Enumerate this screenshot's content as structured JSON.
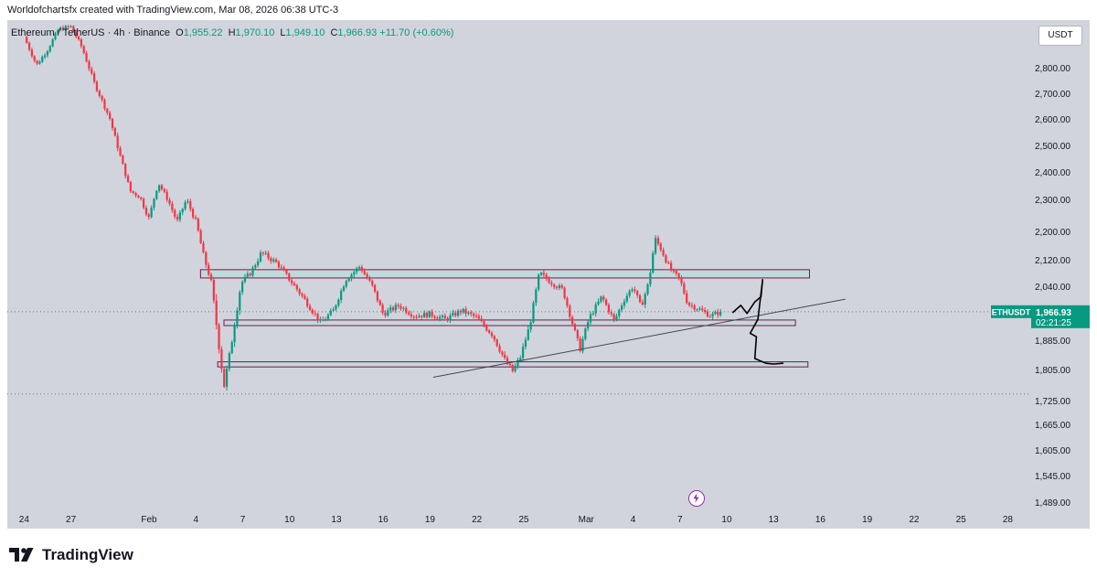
{
  "header": {
    "credit": "Worldofchartsfx created with TradingView.com, Mar 08, 2026 06:38 UTC-3"
  },
  "legend": {
    "symbol": "Ethereum / TetherUS · 4h · Binance",
    "open_label": "O",
    "open": "1,955.22",
    "high_label": "H",
    "high": "1,970.10",
    "low_label": "L",
    "low": "1,949.10",
    "close_label": "C",
    "close": "1,966.93",
    "change": "+11.70 (+0.60%)"
  },
  "price_scale": {
    "currency_button": "USDT",
    "current_ticker": "ETHUSDT",
    "current_price": "1,966.93",
    "countdown": "02:21:25"
  },
  "footer": {
    "brand": "TradingView"
  },
  "colors": {
    "bull": "#089981",
    "bear": "#f23645",
    "zone_fill": "#b2dfdb",
    "zone_border": "#880e4f",
    "background": "#d1d4dc"
  },
  "chart_data": {
    "type": "candlestick",
    "title": "Ethereum / TetherUS · 4h · Binance",
    "y_ticks": [
      2800,
      2700,
      2600,
      2500,
      2400,
      2300,
      2200,
      2120,
      2040,
      1885,
      1805,
      1725,
      1665,
      1605,
      1545,
      1489
    ],
    "y_tick_labels": [
      "2,800.00",
      "2,700.00",
      "2,600.00",
      "2,500.00",
      "2,400.00",
      "2,300.00",
      "2,200.00",
      "2,120.00",
      "2,040.00",
      "1,885.00",
      "1,805.00",
      "1,725.00",
      "1,665.00",
      "1,605.00",
      "1,545.00",
      "1,489.00"
    ],
    "x_tick_labels": [
      "24",
      "27",
      "Feb",
      "4",
      "7",
      "10",
      "13",
      "16",
      "19",
      "22",
      "25",
      "Mar",
      "4",
      "7",
      "10",
      "13",
      "16",
      "19",
      "22",
      "25",
      "28"
    ],
    "x_tick_days": [
      -8,
      -5,
      0,
      3,
      6,
      9,
      12,
      15,
      18,
      21,
      24,
      28,
      31,
      34,
      37,
      40,
      43,
      46,
      49,
      52,
      55
    ],
    "current_price": 1966.93,
    "prior_level": 1742,
    "price_path": [
      [
        -8.0,
        2920
      ],
      [
        -7.2,
        2810
      ],
      [
        -6.5,
        2870
      ],
      [
        -5.8,
        2950
      ],
      [
        -5.0,
        2960
      ],
      [
        -4.3,
        2880
      ],
      [
        -3.5,
        2740
      ],
      [
        -2.5,
        2600
      ],
      [
        -1.8,
        2450
      ],
      [
        -1.2,
        2330
      ],
      [
        -0.6,
        2310
      ],
      [
        0.0,
        2240
      ],
      [
        0.6,
        2360
      ],
      [
        1.2,
        2300
      ],
      [
        1.8,
        2230
      ],
      [
        2.4,
        2300
      ],
      [
        3.0,
        2230
      ],
      [
        3.5,
        2130
      ],
      [
        4.0,
        2050
      ],
      [
        4.5,
        1860
      ],
      [
        4.8,
        1760
      ],
      [
        5.3,
        1880
      ],
      [
        5.9,
        2050
      ],
      [
        6.5,
        2080
      ],
      [
        7.2,
        2140
      ],
      [
        8.2,
        2110
      ],
      [
        9.0,
        2060
      ],
      [
        10.0,
        2000
      ],
      [
        11.0,
        1935
      ],
      [
        11.8,
        1970
      ],
      [
        12.6,
        2060
      ],
      [
        13.5,
        2100
      ],
      [
        14.3,
        2040
      ],
      [
        15.0,
        1960
      ],
      [
        16.0,
        1985
      ],
      [
        17.0,
        1955
      ],
      [
        18.0,
        1960
      ],
      [
        19.0,
        1945
      ],
      [
        20.0,
        1970
      ],
      [
        21.0,
        1950
      ],
      [
        22.0,
        1900
      ],
      [
        22.8,
        1830
      ],
      [
        23.3,
        1800
      ],
      [
        23.8,
        1840
      ],
      [
        24.4,
        1930
      ],
      [
        25.0,
        2080
      ],
      [
        25.8,
        2050
      ],
      [
        26.5,
        2030
      ],
      [
        27.2,
        1920
      ],
      [
        27.6,
        1860
      ],
      [
        28.2,
        1950
      ],
      [
        29.0,
        2010
      ],
      [
        29.8,
        1940
      ],
      [
        30.4,
        2000
      ],
      [
        31.0,
        2040
      ],
      [
        31.5,
        1980
      ],
      [
        32.0,
        2050
      ],
      [
        32.4,
        2180
      ],
      [
        32.8,
        2150
      ],
      [
        33.4,
        2090
      ],
      [
        34.0,
        2060
      ],
      [
        34.5,
        1990
      ],
      [
        35.2,
        1975
      ],
      [
        36.0,
        1955
      ],
      [
        36.6,
        1967
      ]
    ],
    "zones": [
      {
        "name": "resistance",
        "from_day": 3.3,
        "to_day": 42.3,
        "low": 2065,
        "high": 2090
      },
      {
        "name": "middle",
        "from_day": 4.8,
        "to_day": 41.4,
        "low": 1927,
        "high": 1943
      },
      {
        "name": "support",
        "from_day": 4.4,
        "to_day": 42.2,
        "low": 1812,
        "high": 1826
      }
    ],
    "trendline": {
      "from": [
        18.2,
        1785
      ],
      "to": [
        44.6,
        2003
      ]
    },
    "drawing_path": [
      [
        37.4,
        1965
      ],
      [
        37.9,
        1985
      ],
      [
        38.3,
        1962
      ],
      [
        38.8,
        1995
      ],
      [
        39.2,
        2010
      ],
      [
        39.3,
        2060
      ],
      [
        39.0,
        1945
      ],
      [
        38.5,
        1905
      ],
      [
        38.9,
        1895
      ],
      [
        38.8,
        1835
      ],
      [
        39.5,
        1822
      ],
      [
        40.0,
        1820
      ],
      [
        40.6,
        1822
      ]
    ]
  }
}
